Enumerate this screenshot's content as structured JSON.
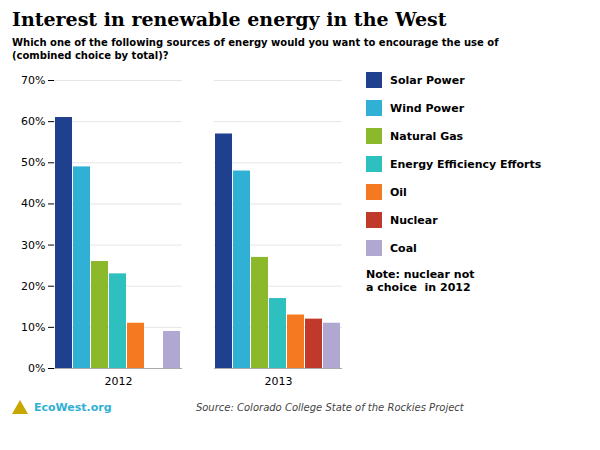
{
  "chart_data": {
    "type": "bar",
    "title": "Interest in renewable energy in the West",
    "subtitle": "Which one of the following sources of energy would you want to encourage the use of\n(combined choice by total)?",
    "note": "Note: nuclear not\na choice  in 2012",
    "source": "Source: Colorado College State of the Rockies Project",
    "logo_text": "EcoWest.org",
    "categories": [
      "2012",
      "2013"
    ],
    "series": [
      {
        "name": "Solar Power",
        "color": "#1f3f8f",
        "values": [
          61,
          57
        ]
      },
      {
        "name": "Wind Power",
        "color": "#31b0d5",
        "values": [
          49,
          48
        ]
      },
      {
        "name": "Natural Gas",
        "color": "#8cb82c",
        "values": [
          26,
          27
        ]
      },
      {
        "name": "Energy Efficiency Efforts",
        "color": "#2ebfbf",
        "values": [
          23,
          17
        ]
      },
      {
        "name": "Oil",
        "color": "#f47920",
        "values": [
          11,
          13
        ]
      },
      {
        "name": "Nuclear",
        "color": "#c0392b",
        "values": [
          0,
          12
        ]
      },
      {
        "name": "Coal",
        "color": "#b0a8d0",
        "values": [
          9,
          11
        ]
      }
    ],
    "ylim": [
      0,
      70
    ],
    "yticks": [
      {
        "value": 0,
        "label": "0%"
      },
      {
        "value": 10,
        "label": "10%"
      },
      {
        "value": 20,
        "label": "20%"
      },
      {
        "value": 30,
        "label": "30%"
      },
      {
        "value": 40,
        "label": "40%"
      },
      {
        "value": 50,
        "label": "50%"
      },
      {
        "value": 60,
        "label": "60%"
      },
      {
        "value": 70,
        "label": "70%"
      }
    ],
    "grid": true,
    "legend": "right"
  }
}
